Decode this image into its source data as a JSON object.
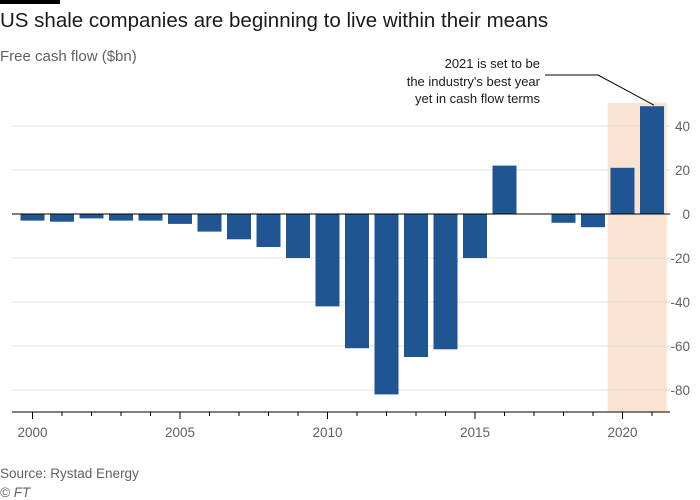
{
  "header": {
    "title": "US shale companies are beginning to live within their means",
    "subtitle": "Free cash flow ($bn)"
  },
  "footer": {
    "source": "Source: Rystad Energy",
    "credit": "© FT"
  },
  "colors": {
    "bar": "#1f5592",
    "highlight": "#fbe3d2",
    "grid": "#e6e0da",
    "zero_line": "#000000",
    "text": "#66605c"
  },
  "chart_data": {
    "type": "bar",
    "title": "US shale companies are beginning to live within their means",
    "ylabel": "Free cash flow ($bn)",
    "xlabel": "",
    "ylim": [
      -90,
      50
    ],
    "yticks": [
      40,
      20,
      0,
      -20,
      -40,
      -60,
      -80
    ],
    "xticks": [
      2000,
      2005,
      2010,
      2015,
      2020
    ],
    "categories": [
      2000,
      2001,
      2002,
      2003,
      2004,
      2005,
      2006,
      2007,
      2008,
      2009,
      2010,
      2011,
      2012,
      2013,
      2014,
      2015,
      2016,
      2017,
      2018,
      2019,
      2020,
      2021
    ],
    "values": [
      -3,
      -3.5,
      -2,
      -3,
      -3,
      -4.5,
      -8,
      -11.5,
      -15,
      -20,
      -42,
      -61,
      -82,
      -65,
      -61.5,
      -20,
      22,
      0,
      -4,
      -6,
      21,
      49
    ],
    "highlight_years": [
      2020,
      2021
    ],
    "grid": true,
    "y_axis_side": "right",
    "annotation": {
      "lines": [
        "2021 is set to be",
        "the industry's best year",
        "yet in cash flow terms"
      ],
      "target_year": 2021
    }
  }
}
